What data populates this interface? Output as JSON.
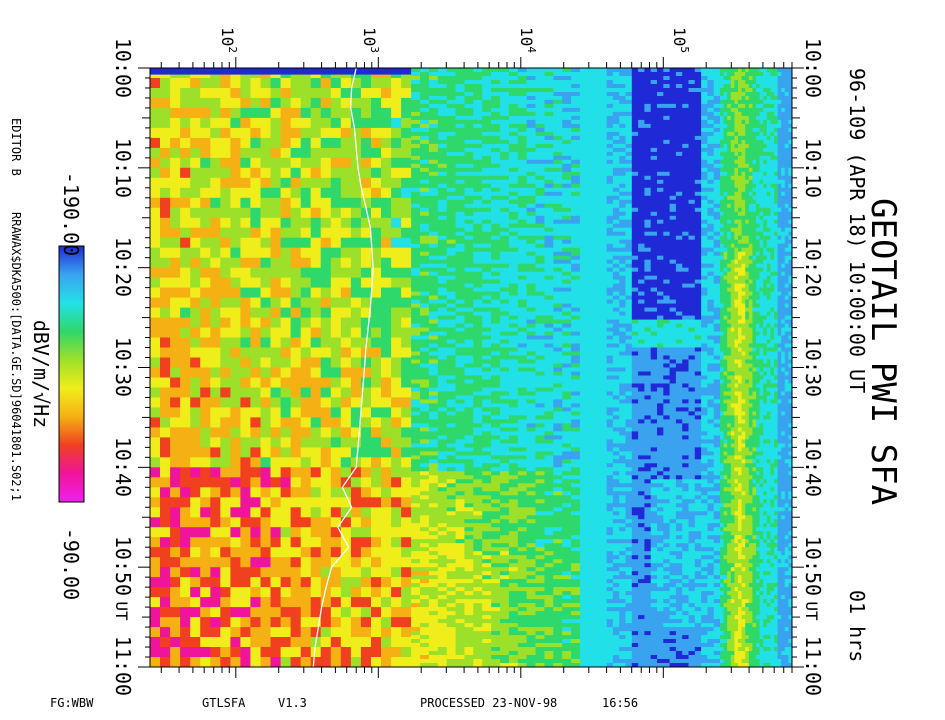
{
  "chart_data": {
    "type": "heatmap",
    "title": "GEOTAIL PWI SFA",
    "subtitle": "96-109 (APR 18) 10:00:00 UT",
    "duration_label": "01 hrs",
    "time_axis": {
      "ticks": [
        "10:00",
        "10:10",
        "10:20",
        "10:30",
        "10:40",
        "10:50",
        "11:00"
      ],
      "ut_label": "UT"
    },
    "frequency_axis": {
      "scale": "log",
      "range_hz": [
        25,
        800000
      ],
      "ticks": [
        {
          "base": "10",
          "exp": "2",
          "value": 100
        },
        {
          "base": "10",
          "exp": "3",
          "value": 1000
        },
        {
          "base": "10",
          "exp": "4",
          "value": 10000
        },
        {
          "base": "10",
          "exp": "5",
          "value": 100000
        }
      ]
    },
    "bands": [
      {
        "range_hz": [
          25,
          1700
        ],
        "character": "blocky"
      },
      {
        "range_hz": [
          1700,
          40000
        ],
        "character": "striated"
      },
      {
        "range_hz": [
          40000,
          250000
        ],
        "character": "striated"
      },
      {
        "range_hz": [
          250000,
          800000
        ],
        "character": "striated"
      }
    ],
    "colorbar": {
      "label": "dBV/m/√Hz",
      "min_label": "-190.00",
      "max_label": "-90.00",
      "colors": [
        "#1f2ad6",
        "#3aa3f0",
        "#22e0e8",
        "#2fd86a",
        "#9de02a",
        "#f0ee1a",
        "#f5b014",
        "#f04020",
        "#f0149a",
        "#f020f0"
      ]
    },
    "trace": {
      "color": "#ffffff",
      "times": [
        0,
        2,
        4,
        6,
        8,
        10,
        12,
        14,
        16,
        18,
        20,
        22,
        24,
        26,
        28,
        30,
        32,
        34,
        36,
        38,
        40,
        42,
        44,
        46,
        48,
        50,
        52,
        54,
        56,
        58,
        60
      ],
      "freq_hz": [
        700,
        650,
        640,
        680,
        700,
        720,
        760,
        820,
        880,
        900,
        920,
        900,
        880,
        850,
        820,
        800,
        780,
        760,
        740,
        720,
        700,
        560,
        650,
        520,
        620,
        470,
        430,
        400,
        380,
        360,
        350
      ]
    },
    "editor_label": "EDITOR B",
    "source_label": "RRAWAX$DKA500:[DATA.GE.SD]96041801.S02;1"
  },
  "footer": {
    "fg": "FG:WBW",
    "program": "GTLSFA",
    "version": "V1.3",
    "processed": "PROCESSED 23-NOV-98",
    "processed_time": "16:56"
  }
}
